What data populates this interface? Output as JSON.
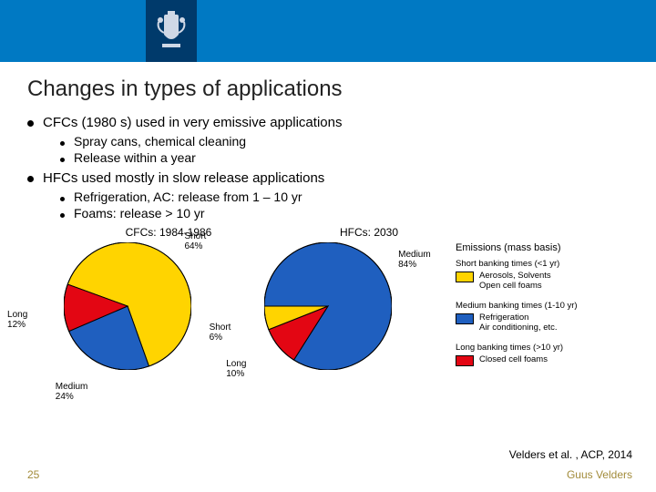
{
  "header": {
    "band_color": "#0079c3",
    "crest_bg": "#003a6b"
  },
  "title": "Changes in types of applications",
  "bullets": [
    {
      "text": "CFCs (1980 s) used in very emissive applications",
      "sub": [
        "Spray cans, chemical cleaning",
        "Release within a year"
      ]
    },
    {
      "text": "HFCs used mostly in slow release applications",
      "sub": [
        "Refrigeration, AC: release from 1 – 10 yr",
        "Foams: release > 10 yr"
      ]
    }
  ],
  "charts": {
    "pie1": {
      "type": "pie",
      "title": "CFCs: 1984-1986",
      "diameter": 140,
      "slices": [
        {
          "label": "Short",
          "value": 64,
          "color": "#ffd400",
          "label_pos": "br"
        },
        {
          "label": "Medium",
          "value": 24,
          "color": "#1f5fbf",
          "label_pos": "l"
        },
        {
          "label": "Long",
          "value": 12,
          "color": "#e30613",
          "label_pos": "tl"
        }
      ],
      "start_angle": -160,
      "border_color": "#000000"
    },
    "pie2": {
      "type": "pie",
      "title": "HFCs: 2030",
      "diameter": 140,
      "slices": [
        {
          "label": "Medium",
          "value": 84,
          "color": "#1f5fbf",
          "label_pos": "b"
        },
        {
          "label": "Long",
          "value": 10,
          "color": "#e30613",
          "label_pos": "tl"
        },
        {
          "label": "Short",
          "value": 6,
          "color": "#ffd400",
          "label_pos": "tr"
        }
      ],
      "start_angle": -180,
      "border_color": "#000000"
    },
    "legend": {
      "title": "Emissions (mass basis)",
      "groups": [
        {
          "caption": "Short banking times (<1 yr)",
          "color": "#ffd400",
          "text": "Aerosols, Solvents\nOpen cell foams"
        },
        {
          "caption": "Medium banking times (1-10 yr)",
          "color": "#1f5fbf",
          "text": "Refrigeration\nAir conditioning, etc."
        },
        {
          "caption": "Long banking times (>10 yr)",
          "color": "#e30613",
          "text": "Closed cell foams"
        }
      ]
    }
  },
  "citation": "Velders et al. , ACP, 2014",
  "footer": {
    "page": "25",
    "author": "Guus Velders",
    "color": "#a28b3a"
  }
}
